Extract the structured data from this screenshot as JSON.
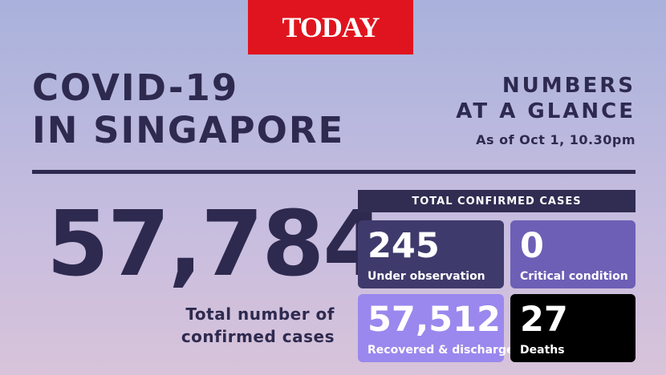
{
  "header": {
    "logo": "TODAY",
    "title_lines": [
      "COVID-19",
      "IN SINGAPORE"
    ],
    "subtitle_lines": [
      "NUMBERS",
      "AT A GLANCE"
    ],
    "date": "As of Oct 1, 10.30pm"
  },
  "total": {
    "value": "57,784",
    "label_lines": [
      "Total number of",
      "confirmed cases"
    ]
  },
  "panel": {
    "title": "TOTAL CONFIRMED CASES",
    "cards": [
      {
        "value": "245",
        "label": "Under observation"
      },
      {
        "value": "0",
        "label": "Critical condition"
      },
      {
        "value": "57,512",
        "label": "Recovered & discharged"
      },
      {
        "value": "27",
        "label": "Deaths"
      }
    ]
  }
}
